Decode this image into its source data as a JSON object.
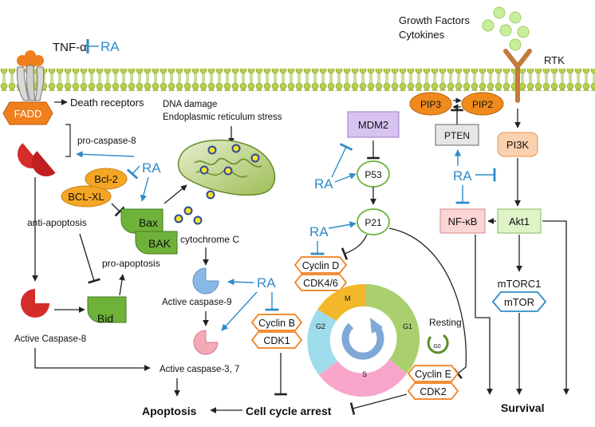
{
  "membrane": {
    "label": ""
  },
  "ligands": {
    "tnf": "TNF-α",
    "ra_inhibitor": "RA",
    "growth": "Growth Factors",
    "cytokines": "Cytokines",
    "rtk": "RTK"
  },
  "extrinsic": {
    "fadd": "FADD",
    "death_receptors": "Death receptors",
    "pro_caspase8": "pro-caspase-8",
    "active_caspase8": "Active Caspase-8",
    "bid": "Bid"
  },
  "mito": {
    "stress1": "DNA damage",
    "stress2": "Endoplasmic reticulum stress",
    "bcl2": "Bcl-2",
    "bclxl": "BCL-XL",
    "anti_apoptosis": "anti-apoptosis",
    "bax": "Bax",
    "bak": "BAK",
    "pro_apoptosis": "pro-apoptosis",
    "cytochrome": "cytochrome C",
    "caspase9": "Active caspase-9",
    "caspase37": "Active caspase-3, 7"
  },
  "cycle": {
    "mdm2": "MDM2",
    "p53": "P53",
    "p21": "P21",
    "cyclinD": "Cyclin D",
    "cdk46": "CDK4/6",
    "cyclinB": "Cyclin B",
    "cdk1": "CDK1",
    "cyclinE": "Cyclin E",
    "cdk2": "CDK2",
    "phase_m": "M",
    "phase_g1": "G1",
    "phase_g2": "G2",
    "phase_s": "S",
    "resting": "Resting",
    "g0": "G0"
  },
  "pi3k_path": {
    "pip3": "PIP3",
    "pip2": "PIP2",
    "pten": "PTEN",
    "pi3k": "PI3K",
    "nfkb": "NF-κB",
    "akt1": "Akt1",
    "mtorc1": "mTORC1",
    "mtor": "mTOR"
  },
  "outcomes": {
    "apoptosis": "Apoptosis",
    "cell_cycle_arrest": "Cell cycle arrest",
    "survival": "Survival"
  },
  "ra_label": "RA",
  "colors": {
    "ra": "#2e8bc9",
    "protein_orange": "#f5a623",
    "membrane_green": "#9bbb3b",
    "caspase_red": "#d42b2b",
    "green_node": "#6fb23a",
    "cycle_g1": "#a9cf6e",
    "cycle_m": "#f3b72a",
    "cycle_g2": "#9fdceb",
    "cycle_s": "#f7a6c9"
  }
}
